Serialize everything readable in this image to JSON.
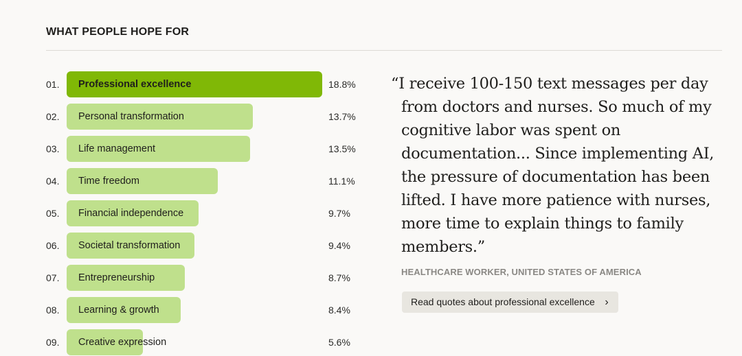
{
  "section_title": "WHAT PEOPLE HOPE FOR",
  "chart_data": {
    "type": "bar",
    "orientation": "horizontal",
    "title": "WHAT PEOPLE HOPE FOR",
    "ranks": [
      "01.",
      "02.",
      "03.",
      "04.",
      "05.",
      "06.",
      "07.",
      "08.",
      "09."
    ],
    "categories": [
      "Professional excellence",
      "Personal transformation",
      "Life management",
      "Time freedom",
      "Financial independence",
      "Societal transformation",
      "Entrepreneurship",
      "Learning & growth",
      "Creative expression"
    ],
    "values": [
      18.8,
      13.7,
      13.5,
      11.1,
      9.7,
      9.4,
      8.7,
      8.4,
      5.6
    ],
    "value_labels": [
      "18.8%",
      "13.7%",
      "13.5%",
      "11.1%",
      "9.7%",
      "9.4%",
      "8.7%",
      "8.4%",
      "5.6%"
    ],
    "unit": "%",
    "highlight_index": 0,
    "colors": {
      "highlight": "#80b806",
      "default": "#bfe08c"
    }
  },
  "quote": {
    "text": "“I receive 100-150 text messages per day from doctors and nurses. So much of my cognitive labor was spent on documentation... Since implementing AI, the pressure of documentation has been lifted. I have more patience with nurses, more time to explain things to family members.”",
    "attribution": "HEALTHCARE WORKER, UNITED STATES OF AMERICA",
    "button_label": "Read quotes about professional excellence",
    "button_icon": "chevron-right-icon"
  }
}
